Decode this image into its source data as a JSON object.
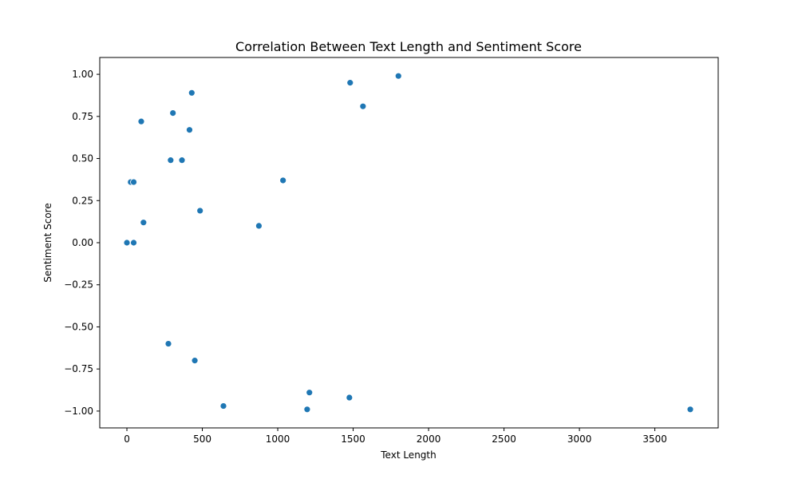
{
  "chart_data": {
    "type": "scatter",
    "title": "Correlation Between Text Length and Sentiment Score",
    "xlabel": "Text Length",
    "ylabel": "Sentiment Score",
    "xlim": [
      -180,
      3920
    ],
    "ylim": [
      -1.1,
      1.1
    ],
    "xticks": [
      0,
      500,
      1000,
      1500,
      2000,
      2500,
      3000,
      3500
    ],
    "yticks": [
      -1.0,
      -0.75,
      -0.5,
      -0.25,
      0.0,
      0.25,
      0.5,
      0.75,
      1.0
    ],
    "xtick_labels": [
      "0",
      "500",
      "1000",
      "1500",
      "2000",
      "2500",
      "3000",
      "3500"
    ],
    "ytick_labels": [
      "−1.00",
      "−0.75",
      "−0.50",
      "−0.25",
      "0.00",
      "0.25",
      "0.50",
      "0.75",
      "1.00"
    ],
    "grid": false,
    "marker_color": "#1f77b4",
    "points": [
      {
        "x": 0,
        "y": 0.0
      },
      {
        "x": 45,
        "y": 0.0
      },
      {
        "x": 25,
        "y": 0.36
      },
      {
        "x": 45,
        "y": 0.36
      },
      {
        "x": 95,
        "y": 0.72
      },
      {
        "x": 110,
        "y": 0.12
      },
      {
        "x": 275,
        "y": -0.6
      },
      {
        "x": 290,
        "y": 0.49
      },
      {
        "x": 305,
        "y": 0.77
      },
      {
        "x": 365,
        "y": 0.49
      },
      {
        "x": 415,
        "y": 0.67
      },
      {
        "x": 430,
        "y": 0.89
      },
      {
        "x": 450,
        "y": -0.7
      },
      {
        "x": 485,
        "y": 0.19
      },
      {
        "x": 640,
        "y": -0.97
      },
      {
        "x": 875,
        "y": 0.1
      },
      {
        "x": 1035,
        "y": 0.37
      },
      {
        "x": 1195,
        "y": -0.99
      },
      {
        "x": 1210,
        "y": -0.89
      },
      {
        "x": 1475,
        "y": -0.92
      },
      {
        "x": 1480,
        "y": 0.95
      },
      {
        "x": 1565,
        "y": 0.81
      },
      {
        "x": 1800,
        "y": 0.99
      },
      {
        "x": 3735,
        "y": -0.99
      }
    ]
  }
}
